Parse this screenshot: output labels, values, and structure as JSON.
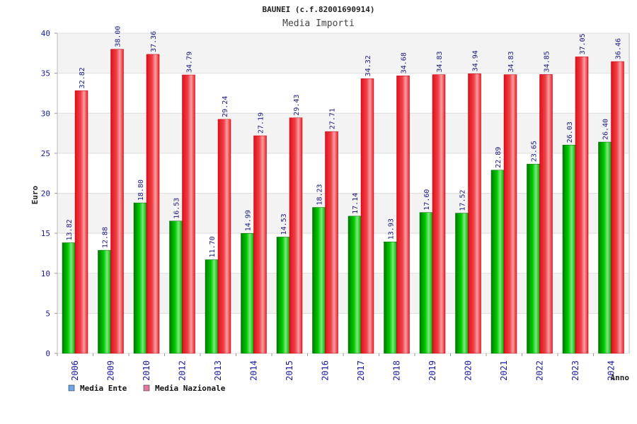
{
  "chart_data": {
    "type": "bar",
    "title": "BAUNEI (c.f.82001690914)",
    "subtitle": "Media Importi",
    "xlabel": "Anno",
    "ylabel": "Euro",
    "ylim": [
      0,
      40
    ],
    "yticks": [
      0,
      5,
      10,
      15,
      20,
      25,
      30,
      35,
      40
    ],
    "grid": true,
    "legend_position": "bottom-left",
    "categories": [
      "2006",
      "2009",
      "2010",
      "2012",
      "2013",
      "2014",
      "2015",
      "2016",
      "2017",
      "2018",
      "2019",
      "2020",
      "2021",
      "2022",
      "2023",
      "2024"
    ],
    "series": [
      {
        "name": "Media Ente",
        "color": "#00b000",
        "legend_color": "#6aa6e8",
        "values": [
          13.82,
          12.88,
          18.8,
          16.53,
          11.7,
          14.99,
          14.53,
          18.23,
          17.14,
          13.93,
          17.6,
          17.52,
          22.89,
          23.65,
          26.03,
          26.4
        ],
        "labels": [
          "13.82",
          "12.88",
          "18.80",
          "16.53",
          "11.70",
          "14.99",
          "14.53",
          "18.23",
          "17.14",
          "13.93",
          "17.60",
          "17.52",
          "22.89",
          "23.65",
          "26.03",
          "26.40"
        ]
      },
      {
        "name": "Media Nazionale",
        "color": "#ee1c24",
        "legend_color": "#e07aa0",
        "values": [
          32.82,
          38.0,
          37.36,
          34.79,
          29.24,
          27.19,
          29.43,
          27.71,
          34.32,
          34.68,
          34.83,
          34.94,
          34.83,
          34.85,
          37.05,
          36.46
        ],
        "labels": [
          "32.82",
          "38.00",
          "37.36",
          "34.79",
          "29.24",
          "27.19",
          "29.43",
          "27.71",
          "34.32",
          "34.68",
          "34.83",
          "34.94",
          "34.83",
          "34.85",
          "37.05",
          "36.46"
        ]
      }
    ]
  }
}
